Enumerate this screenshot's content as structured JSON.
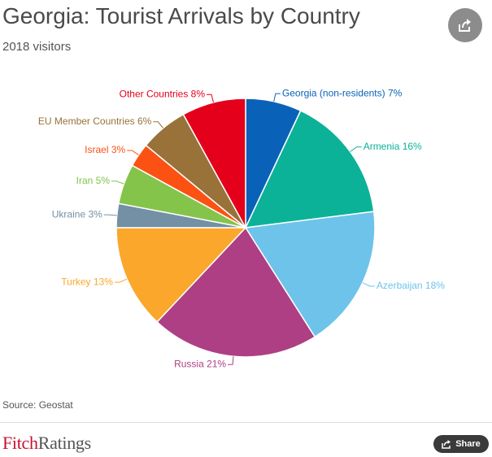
{
  "header": {
    "title": "Georgia: Tourist Arrivals by Country",
    "subtitle": "2018 visitors"
  },
  "chart_data": {
    "type": "pie",
    "categories": [
      "Georgia (non-residents)",
      "Armenia",
      "Azerbaijan",
      "Russia",
      "Turkey",
      "Ukraine",
      "Iran",
      "Israel",
      "EU Member Countries",
      "Other Countries"
    ],
    "values": [
      7,
      16,
      18,
      21,
      13,
      3,
      5,
      3,
      6,
      8
    ],
    "labels": [
      "Georgia (non-residents) 7%",
      "Armenia 16%",
      "Azerbaijan 18%",
      "Russia 21%",
      "Turkey 13%",
      "Ukraine 3%",
      "Iran 5%",
      "Israel 3%",
      "EU Member Countries 6%",
      "Other Countries 8%"
    ],
    "colors": [
      "#0a62b8",
      "#0bb298",
      "#6ec3ea",
      "#ae3f84",
      "#fba72b",
      "#7390a4",
      "#85c44a",
      "#fb5214",
      "#987238",
      "#e4001b"
    ],
    "unit": "%"
  },
  "footer": {
    "source": "Source: Geostat",
    "brand_part1": "Fitch",
    "brand_part2": "Ratings",
    "share_label": "Share"
  },
  "icons": {
    "top_share": "share-arrow-icon",
    "footer_share": "share-icon"
  }
}
